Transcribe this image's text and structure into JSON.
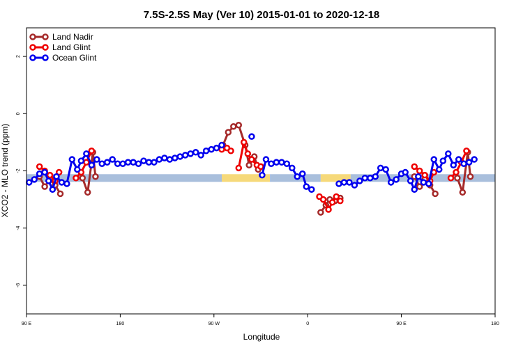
{
  "chart_data": {
    "type": "line",
    "title": "7.5S-2.5S May (Ver 10)   2015-01-01 to 2020-12-18",
    "xlabel": "Longitude",
    "ylabel": "XCO2 - MLO trend (ppm)",
    "xlim": [
      -90,
      270
    ],
    "ylim": [
      -7,
      3
    ],
    "x_ticks": [
      {
        "value": -90,
        "label": "90 E"
      },
      {
        "value": -18,
        "label": "180"
      },
      {
        "value": 54,
        "label": "90 W"
      },
      {
        "value": 126,
        "label": "0"
      },
      {
        "value": 198,
        "label": "90 E"
      },
      {
        "value": 270,
        "label": "180"
      }
    ],
    "y_ticks": [
      -6,
      -4,
      -2,
      0,
      2
    ],
    "grid": false,
    "legend_position": "top-left",
    "reference_band": {
      "y": -2.25,
      "segments": [
        {
          "x0": -90,
          "x1": 60,
          "color": "#a9bfdc"
        },
        {
          "x0": 60,
          "x1": 97,
          "color": "#f6d97a"
        },
        {
          "x0": 97,
          "x1": 136,
          "color": "#a9bfdc"
        },
        {
          "x0": 136,
          "x1": 159,
          "color": "#f6d97a"
        },
        {
          "x0": 159,
          "x1": 270,
          "color": "#a9bfdc"
        }
      ]
    },
    "series": [
      {
        "name": "Land Nadir",
        "color": "#a52a2a",
        "segments": [
          [
            [
              -80,
              -2.2
            ],
            [
              -76,
              -2.55
            ],
            [
              -72,
              -2.3
            ],
            [
              -68,
              -2.5
            ],
            [
              -64,
              -2.8
            ]
          ],
          [
            [
              -47,
              -2.25
            ],
            [
              -43,
              -2.75
            ],
            [
              -39,
              -1.35
            ],
            [
              -37,
              -2.2
            ]
          ],
          [
            [
              61,
              -1.1
            ],
            [
              65,
              -0.65
            ],
            [
              69,
              -0.45
            ],
            [
              73,
              -0.4
            ],
            [
              78,
              -1.1
            ],
            [
              81,
              -1.8
            ],
            [
              85,
              -1.5
            ],
            [
              88,
              -1.95
            ],
            [
              90,
              -1.85
            ]
          ],
          [
            [
              136,
              -3.45
            ],
            [
              140,
              -3.2
            ],
            [
              143,
              -3.0
            ],
            [
              147,
              -3.05
            ],
            [
              151,
              -2.95
            ]
          ],
          [
            [
              208,
              -2.2
            ],
            [
              212,
              -2.55
            ],
            [
              216,
              -2.3
            ],
            [
              220,
              -2.5
            ],
            [
              224,
              -2.8
            ]
          ],
          [
            [
              241,
              -2.25
            ],
            [
              245,
              -2.75
            ],
            [
              249,
              -1.35
            ],
            [
              251,
              -2.2
            ]
          ]
        ]
      },
      {
        "name": "Land Glint",
        "color": "#ee0000",
        "segments": [
          [
            [
              -80,
              -1.85
            ],
            [
              -76,
              -2.0
            ],
            [
              -72,
              -2.15
            ],
            [
              -68,
              -2.35
            ],
            [
              -65,
              -2.05
            ]
          ],
          [
            [
              -52,
              -2.25
            ],
            [
              -48,
              -2.05
            ],
            [
              -44,
              -1.7
            ],
            [
              -40,
              -1.3
            ]
          ],
          [
            [
              60,
              -1.25
            ],
            [
              64,
              -1.2
            ],
            [
              67,
              -1.3
            ]
          ],
          [
            [
              73,
              -1.9
            ],
            [
              77,
              -1.0
            ],
            [
              80,
              -1.4
            ],
            [
              83,
              -1.6
            ],
            [
              87,
              -1.8
            ],
            [
              90,
              -1.85
            ]
          ],
          [
            [
              135,
              -2.9
            ],
            [
              138,
              -3.0
            ],
            [
              142,
              -3.35
            ],
            [
              145,
              -3.1
            ],
            [
              148,
              -2.9
            ],
            [
              151,
              -3.05
            ]
          ],
          [
            [
              208,
              -1.85
            ],
            [
              212,
              -2.0
            ],
            [
              216,
              -2.15
            ],
            [
              220,
              -2.35
            ],
            [
              223,
              -2.05
            ]
          ],
          [
            [
              236,
              -2.25
            ],
            [
              240,
              -2.05
            ],
            [
              244,
              -1.7
            ],
            [
              248,
              -1.3
            ]
          ]
        ]
      },
      {
        "name": "Ocean Glint",
        "color": "#0000ee",
        "segments": [
          [
            [
              -88,
              -2.4
            ],
            [
              -84,
              -2.3
            ],
            [
              -80,
              -2.1
            ],
            [
              -76,
              -2.05
            ],
            [
              -73,
              -2.35
            ],
            [
              -70,
              -2.65
            ],
            [
              -67,
              -2.2
            ],
            [
              -63,
              -2.4
            ],
            [
              -59,
              -2.45
            ],
            [
              -55,
              -1.6
            ],
            [
              -51,
              -1.95
            ],
            [
              -48,
              -1.65
            ],
            [
              -44,
              -1.4
            ],
            [
              -40,
              -1.8
            ],
            [
              -36,
              -1.6
            ],
            [
              -32,
              -1.75
            ],
            [
              -28,
              -1.7
            ],
            [
              -24,
              -1.6
            ],
            [
              -20,
              -1.75
            ],
            [
              -16,
              -1.75
            ],
            [
              -12,
              -1.7
            ],
            [
              -8,
              -1.7
            ],
            [
              -4,
              -1.75
            ],
            [
              0,
              -1.65
            ],
            [
              4,
              -1.7
            ],
            [
              8,
              -1.7
            ],
            [
              12,
              -1.6
            ],
            [
              16,
              -1.55
            ],
            [
              20,
              -1.6
            ],
            [
              24,
              -1.55
            ],
            [
              28,
              -1.5
            ],
            [
              32,
              -1.45
            ],
            [
              36,
              -1.4
            ],
            [
              40,
              -1.35
            ],
            [
              44,
              -1.45
            ],
            [
              48,
              -1.3
            ],
            [
              52,
              -1.25
            ],
            [
              56,
              -1.2
            ],
            [
              60,
              -1.1
            ]
          ],
          [
            [
              83,
              -0.8
            ]
          ],
          [
            [
              91,
              -2.15
            ],
            [
              94,
              -1.6
            ],
            [
              98,
              -1.75
            ],
            [
              102,
              -1.7
            ],
            [
              106,
              -1.7
            ],
            [
              110,
              -1.75
            ],
            [
              114,
              -1.9
            ],
            [
              118,
              -2.2
            ],
            [
              122,
              -2.1
            ],
            [
              125,
              -2.55
            ],
            [
              129,
              -2.65
            ]
          ],
          [
            [
              150,
              -2.45
            ],
            [
              154,
              -2.4
            ],
            [
              158,
              -2.4
            ],
            [
              162,
              -2.5
            ],
            [
              166,
              -2.35
            ],
            [
              170,
              -2.25
            ],
            [
              174,
              -2.25
            ],
            [
              178,
              -2.2
            ],
            [
              182,
              -1.9
            ],
            [
              186,
              -1.95
            ],
            [
              190,
              -2.4
            ],
            [
              194,
              -2.3
            ],
            [
              198,
              -2.1
            ],
            [
              201,
              -2.05
            ],
            [
              205,
              -2.35
            ],
            [
              208,
              -2.65
            ],
            [
              211,
              -2.2
            ],
            [
              215,
              -2.4
            ],
            [
              219,
              -2.45
            ],
            [
              223,
              -1.6
            ],
            [
              227,
              -1.95
            ],
            [
              230,
              -1.65
            ],
            [
              234,
              -1.4
            ],
            [
              238,
              -1.8
            ],
            [
              242,
              -1.6
            ],
            [
              246,
              -1.75
            ],
            [
              250,
              -1.7
            ],
            [
              254,
              -1.6
            ]
          ]
        ]
      }
    ]
  }
}
